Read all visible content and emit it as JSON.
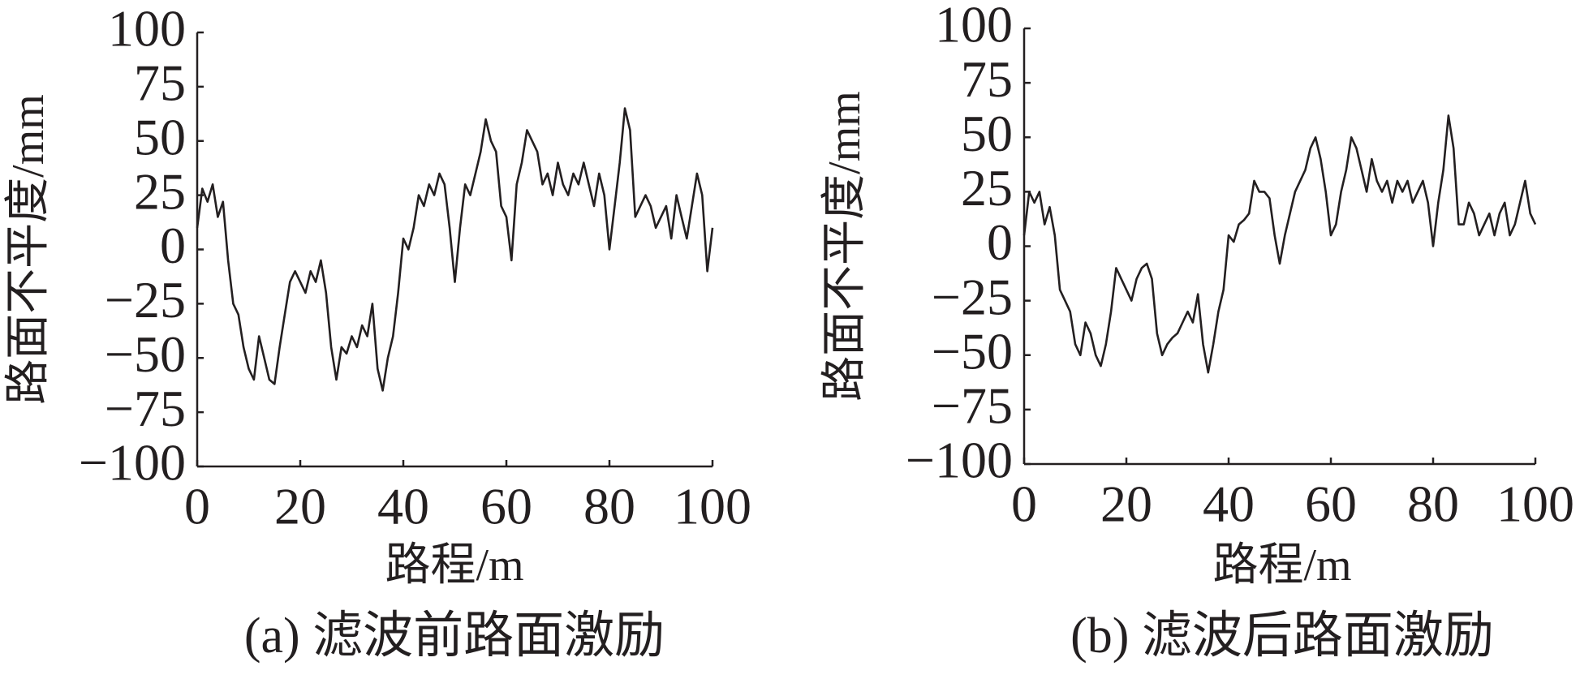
{
  "chart_data": [
    {
      "type": "line",
      "title": "(a)  滤波前路面激励",
      "xlabel": "路程/m",
      "ylabel": "路面不平度/mm",
      "color": "#231f20",
      "x": [
        0,
        1,
        2,
        3,
        4,
        5,
        6,
        7,
        8,
        9,
        10,
        11,
        12,
        13,
        14,
        15,
        16,
        17,
        18,
        19,
        20,
        21,
        22,
        23,
        24,
        25,
        26,
        27,
        28,
        29,
        30,
        31,
        32,
        33,
        34,
        35,
        36,
        37,
        38,
        39,
        40,
        41,
        42,
        43,
        44,
        45,
        46,
        47,
        48,
        49,
        50,
        51,
        52,
        53,
        54,
        55,
        56,
        57,
        58,
        59,
        60,
        61,
        62,
        63,
        64,
        65,
        66,
        67,
        68,
        69,
        70,
        71,
        72,
        73,
        74,
        75,
        76,
        77,
        78,
        79,
        80,
        81,
        82,
        83,
        84,
        85,
        86,
        87,
        88,
        89,
        90,
        91,
        92,
        93,
        94,
        95,
        96,
        97,
        98,
        99,
        100
      ],
      "values": [
        10,
        28,
        22,
        30,
        15,
        22,
        -5,
        -25,
        -30,
        -45,
        -55,
        -60,
        -40,
        -50,
        -60,
        -62,
        -45,
        -30,
        -15,
        -10,
        -15,
        -20,
        -10,
        -15,
        -5,
        -20,
        -45,
        -60,
        -45,
        -48,
        -40,
        -45,
        -35,
        -40,
        -25,
        -55,
        -65,
        -50,
        -40,
        -20,
        5,
        0,
        10,
        25,
        20,
        30,
        25,
        35,
        30,
        10,
        -15,
        10,
        30,
        25,
        35,
        45,
        60,
        50,
        45,
        20,
        15,
        -5,
        30,
        40,
        55,
        50,
        45,
        30,
        35,
        25,
        40,
        30,
        25,
        35,
        30,
        40,
        30,
        20,
        35,
        25,
        0,
        20,
        40,
        65,
        55,
        15,
        20,
        25,
        20,
        10,
        15,
        20,
        5,
        25,
        15,
        5,
        20,
        35,
        25,
        -10,
        10
      ],
      "xlim": [
        0,
        100
      ],
      "xticks": [
        0,
        20,
        40,
        60,
        80,
        100
      ],
      "ylim": [
        -100,
        100
      ],
      "yticks": [
        {
          "value": -100,
          "label": "−100"
        },
        {
          "value": -75,
          "label": "−75"
        },
        {
          "value": -50,
          "label": "−50"
        },
        {
          "value": -25,
          "label": "−25"
        },
        0,
        25,
        50,
        75,
        100
      ]
    },
    {
      "type": "line",
      "title": "(b)  滤波后路面激励",
      "xlabel": "路程/m",
      "ylabel": "路面不平度/mm",
      "color": "#231f20",
      "x": [
        0,
        1,
        2,
        3,
        4,
        5,
        6,
        7,
        8,
        9,
        10,
        11,
        12,
        13,
        14,
        15,
        16,
        17,
        18,
        19,
        20,
        21,
        22,
        23,
        24,
        25,
        26,
        27,
        28,
        29,
        30,
        31,
        32,
        33,
        34,
        35,
        36,
        37,
        38,
        39,
        40,
        41,
        42,
        43,
        44,
        45,
        46,
        47,
        48,
        49,
        50,
        51,
        52,
        53,
        54,
        55,
        56,
        57,
        58,
        59,
        60,
        61,
        62,
        63,
        64,
        65,
        66,
        67,
        68,
        69,
        70,
        71,
        72,
        73,
        74,
        75,
        76,
        77,
        78,
        79,
        80,
        81,
        82,
        83,
        84,
        85,
        86,
        87,
        88,
        89,
        90,
        91,
        92,
        93,
        94,
        95,
        96,
        97,
        98,
        99,
        100
      ],
      "values": [
        5,
        25,
        20,
        25,
        10,
        18,
        5,
        -20,
        -25,
        -30,
        -45,
        -50,
        -35,
        -40,
        -50,
        -55,
        -45,
        -30,
        -10,
        -15,
        -20,
        -25,
        -15,
        -10,
        -8,
        -15,
        -40,
        -50,
        -45,
        -42,
        -40,
        -35,
        -30,
        -35,
        -22,
        -45,
        -58,
        -45,
        -30,
        -20,
        5,
        2,
        10,
        12,
        15,
        30,
        25,
        25,
        22,
        5,
        -8,
        5,
        15,
        25,
        30,
        35,
        45,
        50,
        40,
        25,
        5,
        10,
        25,
        35,
        50,
        45,
        35,
        25,
        40,
        30,
        25,
        30,
        20,
        30,
        25,
        30,
        20,
        25,
        30,
        20,
        0,
        20,
        35,
        60,
        45,
        10,
        10,
        20,
        15,
        5,
        10,
        15,
        5,
        15,
        20,
        5,
        10,
        20,
        30,
        15,
        10
      ],
      "xlim": [
        0,
        100
      ],
      "xticks": [
        0,
        20,
        40,
        60,
        80,
        100
      ],
      "ylim": [
        -100,
        100
      ],
      "yticks": [
        {
          "value": -100,
          "label": "−100"
        },
        {
          "value": -75,
          "label": "−75"
        },
        {
          "value": -50,
          "label": "−50"
        },
        {
          "value": -25,
          "label": "−25"
        },
        0,
        25,
        50,
        75,
        100
      ]
    }
  ]
}
